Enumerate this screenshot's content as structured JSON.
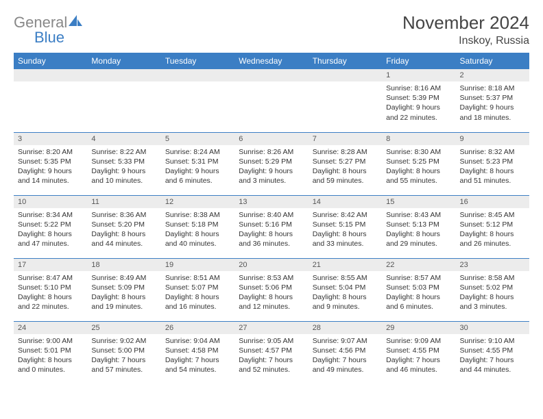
{
  "brand": {
    "text_gray": "General",
    "text_blue": "Blue"
  },
  "title": "November 2024",
  "location": "Inskoy, Russia",
  "colors": {
    "header_bg": "#3b7ec4",
    "daynum_bg": "#ececec",
    "rule": "#3b7ec4",
    "title_color": "#444444",
    "logo_gray": "#888888",
    "logo_blue": "#3b7ec4"
  },
  "weekdays": [
    "Sunday",
    "Monday",
    "Tuesday",
    "Wednesday",
    "Thursday",
    "Friday",
    "Saturday"
  ],
  "weeks": [
    [
      {
        "n": "",
        "sr": "",
        "ss": "",
        "dl": ""
      },
      {
        "n": "",
        "sr": "",
        "ss": "",
        "dl": ""
      },
      {
        "n": "",
        "sr": "",
        "ss": "",
        "dl": ""
      },
      {
        "n": "",
        "sr": "",
        "ss": "",
        "dl": ""
      },
      {
        "n": "",
        "sr": "",
        "ss": "",
        "dl": ""
      },
      {
        "n": "1",
        "sr": "Sunrise: 8:16 AM",
        "ss": "Sunset: 5:39 PM",
        "dl": "Daylight: 9 hours and 22 minutes."
      },
      {
        "n": "2",
        "sr": "Sunrise: 8:18 AM",
        "ss": "Sunset: 5:37 PM",
        "dl": "Daylight: 9 hours and 18 minutes."
      }
    ],
    [
      {
        "n": "3",
        "sr": "Sunrise: 8:20 AM",
        "ss": "Sunset: 5:35 PM",
        "dl": "Daylight: 9 hours and 14 minutes."
      },
      {
        "n": "4",
        "sr": "Sunrise: 8:22 AM",
        "ss": "Sunset: 5:33 PM",
        "dl": "Daylight: 9 hours and 10 minutes."
      },
      {
        "n": "5",
        "sr": "Sunrise: 8:24 AM",
        "ss": "Sunset: 5:31 PM",
        "dl": "Daylight: 9 hours and 6 minutes."
      },
      {
        "n": "6",
        "sr": "Sunrise: 8:26 AM",
        "ss": "Sunset: 5:29 PM",
        "dl": "Daylight: 9 hours and 3 minutes."
      },
      {
        "n": "7",
        "sr": "Sunrise: 8:28 AM",
        "ss": "Sunset: 5:27 PM",
        "dl": "Daylight: 8 hours and 59 minutes."
      },
      {
        "n": "8",
        "sr": "Sunrise: 8:30 AM",
        "ss": "Sunset: 5:25 PM",
        "dl": "Daylight: 8 hours and 55 minutes."
      },
      {
        "n": "9",
        "sr": "Sunrise: 8:32 AM",
        "ss": "Sunset: 5:23 PM",
        "dl": "Daylight: 8 hours and 51 minutes."
      }
    ],
    [
      {
        "n": "10",
        "sr": "Sunrise: 8:34 AM",
        "ss": "Sunset: 5:22 PM",
        "dl": "Daylight: 8 hours and 47 minutes."
      },
      {
        "n": "11",
        "sr": "Sunrise: 8:36 AM",
        "ss": "Sunset: 5:20 PM",
        "dl": "Daylight: 8 hours and 44 minutes."
      },
      {
        "n": "12",
        "sr": "Sunrise: 8:38 AM",
        "ss": "Sunset: 5:18 PM",
        "dl": "Daylight: 8 hours and 40 minutes."
      },
      {
        "n": "13",
        "sr": "Sunrise: 8:40 AM",
        "ss": "Sunset: 5:16 PM",
        "dl": "Daylight: 8 hours and 36 minutes."
      },
      {
        "n": "14",
        "sr": "Sunrise: 8:42 AM",
        "ss": "Sunset: 5:15 PM",
        "dl": "Daylight: 8 hours and 33 minutes."
      },
      {
        "n": "15",
        "sr": "Sunrise: 8:43 AM",
        "ss": "Sunset: 5:13 PM",
        "dl": "Daylight: 8 hours and 29 minutes."
      },
      {
        "n": "16",
        "sr": "Sunrise: 8:45 AM",
        "ss": "Sunset: 5:12 PM",
        "dl": "Daylight: 8 hours and 26 minutes."
      }
    ],
    [
      {
        "n": "17",
        "sr": "Sunrise: 8:47 AM",
        "ss": "Sunset: 5:10 PM",
        "dl": "Daylight: 8 hours and 22 minutes."
      },
      {
        "n": "18",
        "sr": "Sunrise: 8:49 AM",
        "ss": "Sunset: 5:09 PM",
        "dl": "Daylight: 8 hours and 19 minutes."
      },
      {
        "n": "19",
        "sr": "Sunrise: 8:51 AM",
        "ss": "Sunset: 5:07 PM",
        "dl": "Daylight: 8 hours and 16 minutes."
      },
      {
        "n": "20",
        "sr": "Sunrise: 8:53 AM",
        "ss": "Sunset: 5:06 PM",
        "dl": "Daylight: 8 hours and 12 minutes."
      },
      {
        "n": "21",
        "sr": "Sunrise: 8:55 AM",
        "ss": "Sunset: 5:04 PM",
        "dl": "Daylight: 8 hours and 9 minutes."
      },
      {
        "n": "22",
        "sr": "Sunrise: 8:57 AM",
        "ss": "Sunset: 5:03 PM",
        "dl": "Daylight: 8 hours and 6 minutes."
      },
      {
        "n": "23",
        "sr": "Sunrise: 8:58 AM",
        "ss": "Sunset: 5:02 PM",
        "dl": "Daylight: 8 hours and 3 minutes."
      }
    ],
    [
      {
        "n": "24",
        "sr": "Sunrise: 9:00 AM",
        "ss": "Sunset: 5:01 PM",
        "dl": "Daylight: 8 hours and 0 minutes."
      },
      {
        "n": "25",
        "sr": "Sunrise: 9:02 AM",
        "ss": "Sunset: 5:00 PM",
        "dl": "Daylight: 7 hours and 57 minutes."
      },
      {
        "n": "26",
        "sr": "Sunrise: 9:04 AM",
        "ss": "Sunset: 4:58 PM",
        "dl": "Daylight: 7 hours and 54 minutes."
      },
      {
        "n": "27",
        "sr": "Sunrise: 9:05 AM",
        "ss": "Sunset: 4:57 PM",
        "dl": "Daylight: 7 hours and 52 minutes."
      },
      {
        "n": "28",
        "sr": "Sunrise: 9:07 AM",
        "ss": "Sunset: 4:56 PM",
        "dl": "Daylight: 7 hours and 49 minutes."
      },
      {
        "n": "29",
        "sr": "Sunrise: 9:09 AM",
        "ss": "Sunset: 4:55 PM",
        "dl": "Daylight: 7 hours and 46 minutes."
      },
      {
        "n": "30",
        "sr": "Sunrise: 9:10 AM",
        "ss": "Sunset: 4:55 PM",
        "dl": "Daylight: 7 hours and 44 minutes."
      }
    ]
  ]
}
